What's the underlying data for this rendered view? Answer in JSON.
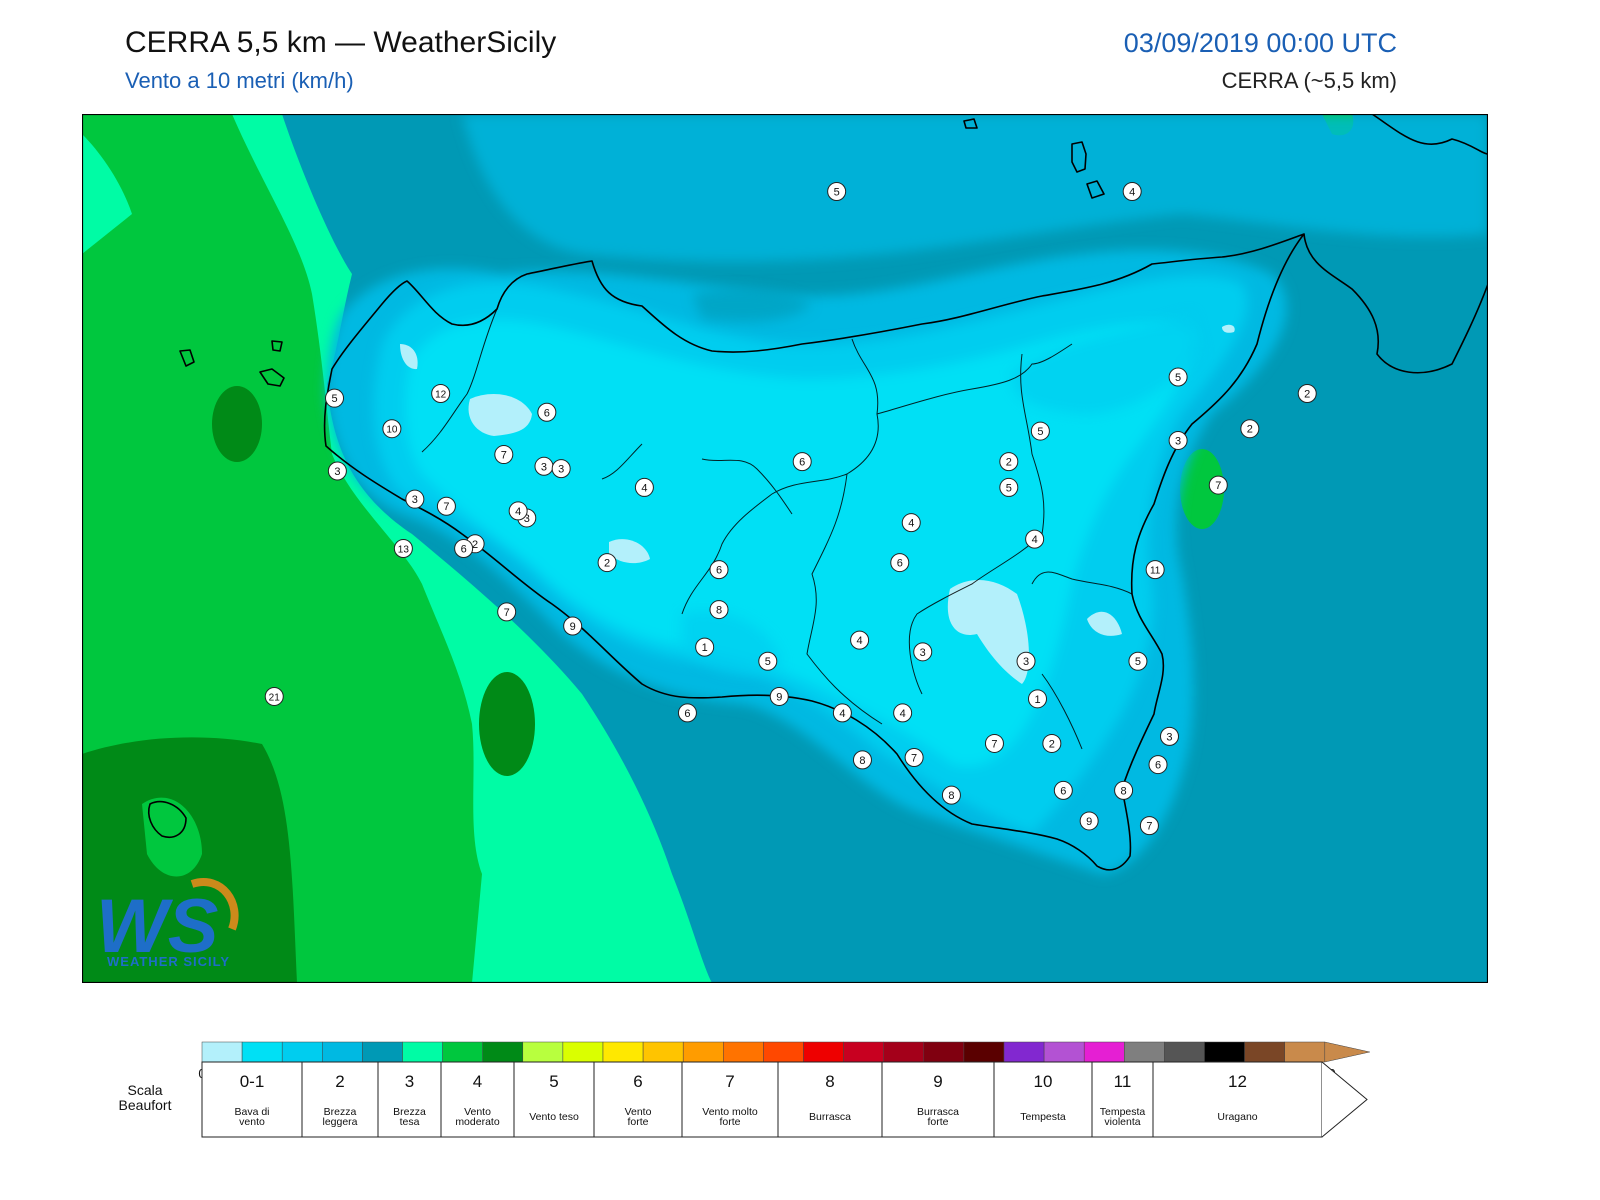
{
  "header": {
    "title": "CERRA 5,5 km — WeatherSicily",
    "subtitle": "Vento a 10 metri (km/h)",
    "datetime": "03/09/2019 00:00 UTC",
    "model": "CERRA (~5,5 km)"
  },
  "logo": {
    "text": "WEATHER SICILY",
    "letters": "WS"
  },
  "stations": [
    {
      "v": "5",
      "lon": 13.93,
      "lat": 38.97
    },
    {
      "v": "4",
      "lon": 14.96,
      "lat": 38.97
    },
    {
      "v": "5",
      "lon": 15.12,
      "lat": 38.18
    },
    {
      "v": "2",
      "lon": 15.57,
      "lat": 38.11
    },
    {
      "v": "2",
      "lon": 15.37,
      "lat": 37.96
    },
    {
      "v": "3",
      "lon": 15.12,
      "lat": 37.91
    },
    {
      "v": "5",
      "lon": 14.64,
      "lat": 37.95
    },
    {
      "v": "2",
      "lon": 14.53,
      "lat": 37.82
    },
    {
      "v": "6",
      "lon": 13.81,
      "lat": 37.82
    },
    {
      "v": "7",
      "lon": 15.26,
      "lat": 37.72
    },
    {
      "v": "5",
      "lon": 14.53,
      "lat": 37.71
    },
    {
      "v": "4",
      "lon": 14.62,
      "lat": 37.49
    },
    {
      "v": "4",
      "lon": 14.19,
      "lat": 37.56
    },
    {
      "v": "6",
      "lon": 14.15,
      "lat": 37.39
    },
    {
      "v": "11",
      "lon": 15.04,
      "lat": 37.36
    },
    {
      "v": "4",
      "lon": 13.26,
      "lat": 37.71
    },
    {
      "v": "3",
      "lon": 12.91,
      "lat": 37.8
    },
    {
      "v": "3",
      "lon": 12.19,
      "lat": 37.78
    },
    {
      "v": "3",
      "lon": 12.85,
      "lat": 37.58
    },
    {
      "v": "12",
      "lon": 12.55,
      "lat": 38.11
    },
    {
      "v": "10",
      "lon": 12.38,
      "lat": 37.96
    },
    {
      "v": "3",
      "lon": 12.46,
      "lat": 37.66
    },
    {
      "v": "2",
      "lon": 12.67,
      "lat": 37.47
    },
    {
      "v": "13",
      "lon": 12.42,
      "lat": 37.45
    },
    {
      "v": "7",
      "lon": 12.77,
      "lat": 37.85
    },
    {
      "v": "5",
      "lon": 12.18,
      "lat": 38.09
    },
    {
      "v": "6",
      "lon": 12.92,
      "lat": 38.03
    },
    {
      "v": "3",
      "lon": 12.97,
      "lat": 37.79
    },
    {
      "v": "4",
      "lon": 12.82,
      "lat": 37.61
    },
    {
      "v": "7",
      "lon": 12.57,
      "lat": 37.63
    },
    {
      "v": "6",
      "lon": 12.63,
      "lat": 37.45
    },
    {
      "v": "2",
      "lon": 13.13,
      "lat": 37.39
    },
    {
      "v": "6",
      "lon": 13.52,
      "lat": 37.36
    },
    {
      "v": "8",
      "lon": 13.52,
      "lat": 37.19
    },
    {
      "v": "7",
      "lon": 12.78,
      "lat": 37.18
    },
    {
      "v": "9",
      "lon": 13.01,
      "lat": 37.12
    },
    {
      "v": "1",
      "lon": 13.47,
      "lat": 37.03
    },
    {
      "v": "5",
      "lon": 13.69,
      "lat": 36.97
    },
    {
      "v": "4",
      "lon": 14.01,
      "lat": 37.06
    },
    {
      "v": "3",
      "lon": 14.23,
      "lat": 37.01
    },
    {
      "v": "3",
      "lon": 14.59,
      "lat": 36.97
    },
    {
      "v": "5",
      "lon": 14.98,
      "lat": 36.97
    },
    {
      "v": "1",
      "lon": 14.63,
      "lat": 36.81
    },
    {
      "v": "9",
      "lon": 13.73,
      "lat": 36.82
    },
    {
      "v": "6",
      "lon": 13.41,
      "lat": 36.75
    },
    {
      "v": "4",
      "lon": 13.95,
      "lat": 36.75
    },
    {
      "v": "4",
      "lon": 14.16,
      "lat": 36.75
    },
    {
      "v": "3",
      "lon": 15.09,
      "lat": 36.65
    },
    {
      "v": "7",
      "lon": 14.48,
      "lat": 36.62
    },
    {
      "v": "2",
      "lon": 14.68,
      "lat": 36.62
    },
    {
      "v": "6",
      "lon": 15.05,
      "lat": 36.53
    },
    {
      "v": "8",
      "lon": 14.02,
      "lat": 36.55
    },
    {
      "v": "7",
      "lon": 14.2,
      "lat": 36.56
    },
    {
      "v": "8",
      "lon": 14.33,
      "lat": 36.4
    },
    {
      "v": "6",
      "lon": 14.72,
      "lat": 36.42
    },
    {
      "v": "8",
      "lon": 14.93,
      "lat": 36.42
    },
    {
      "v": "9",
      "lon": 14.81,
      "lat": 36.29
    },
    {
      "v": "7",
      "lon": 15.02,
      "lat": 36.27
    },
    {
      "v": "21",
      "lon": 11.97,
      "lat": 36.82
    }
  ],
  "legend": {
    "ticks": [
      "0",
      "2",
      "5",
      "7",
      "10",
      "15",
      "20",
      "25",
      "30",
      "35",
      "40",
      "45",
      "50",
      "55",
      "60",
      "65",
      "70",
      "75",
      "80",
      "85",
      "90",
      "95",
      "100",
      "110",
      "120",
      "130",
      "140",
      "150",
      "160"
    ],
    "colors": [
      "#b3f0fb",
      "#00e0f5",
      "#00cdef",
      "#00b9e2",
      "#0099b5",
      "#00fca5",
      "#00c73e",
      "#008a17",
      "#b8ff3e",
      "#daff00",
      "#ffe800",
      "#ffc400",
      "#ff9c00",
      "#ff7300",
      "#ff4800",
      "#ee0000",
      "#c80020",
      "#a4001a",
      "#800010",
      "#5a0000",
      "#8228d0",
      "#b352d3",
      "#e51fd3",
      "#7f7f7f",
      "#555555",
      "#000000",
      "#7a4626",
      "#c98a4b"
    ],
    "beaufort_title_1": "Scala",
    "beaufort_title_2": "Beaufort",
    "beaufort": [
      {
        "num": "0-1",
        "desc": [
          "Bava di",
          "vento"
        ]
      },
      {
        "num": "2",
        "desc": [
          "Brezza",
          "leggera"
        ]
      },
      {
        "num": "3",
        "desc": [
          "Brezza",
          "tesa"
        ]
      },
      {
        "num": "4",
        "desc": [
          "Vento",
          "moderato"
        ]
      },
      {
        "num": "5",
        "desc": [
          "Vento teso"
        ]
      },
      {
        "num": "6",
        "desc": [
          "Vento",
          "forte"
        ]
      },
      {
        "num": "7",
        "desc": [
          "Vento molto",
          "forte"
        ]
      },
      {
        "num": "8",
        "desc": [
          "Burrasca"
        ]
      },
      {
        "num": "9",
        "desc": [
          "Burrasca",
          "forte"
        ]
      },
      {
        "num": "10",
        "desc": [
          "Tempesta"
        ]
      },
      {
        "num": "11",
        "desc": [
          "Tempesta",
          "violenta"
        ]
      },
      {
        "num": "12",
        "desc": [
          "Uragano"
        ]
      }
    ]
  }
}
